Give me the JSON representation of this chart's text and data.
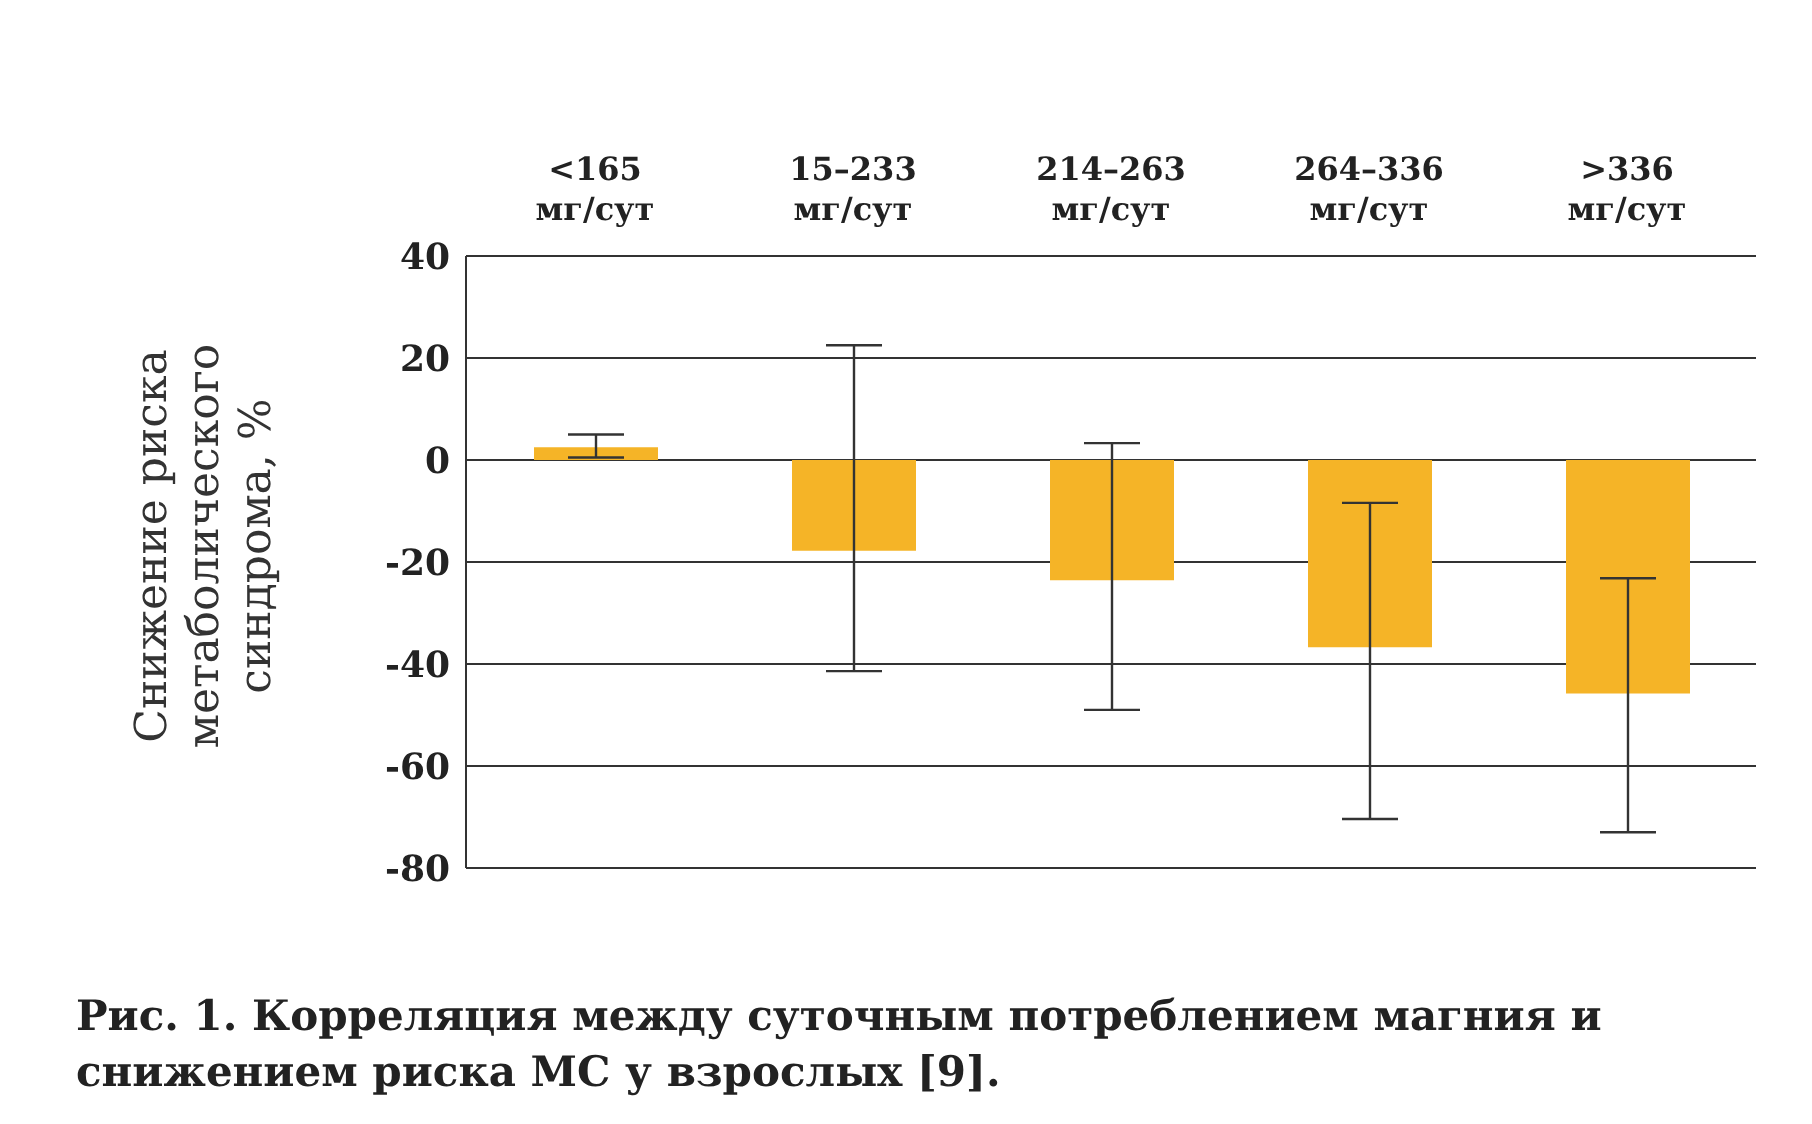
{
  "chart_data": {
    "type": "bar",
    "ylabel": "Снижение риска метаболического синдрома, %",
    "categories": [
      "<165 мг/сут",
      "15–233 мг/сут",
      "214–263 мг/сут",
      "264–336 мг/сут",
      ">336 мг/сут"
    ],
    "values": [
      2.5,
      -17.8,
      -23.6,
      -36.7,
      -45.8
    ],
    "errors": [
      [
        0.5,
        5
      ],
      [
        -41.4,
        22.5
      ],
      [
        -49,
        3.3
      ],
      [
        -70.4,
        -8.4
      ],
      [
        -73,
        -23.2
      ]
    ],
    "color": "#f5b427",
    "ylim": [
      -80,
      40
    ],
    "yticks": [
      -80,
      -60,
      -40,
      -20,
      0,
      20,
      40
    ],
    "grid": "y",
    "annotations": [
      "Рис. 1. Корреляция между суточным потреблением магния и снижением риска МС у взрослых [9]."
    ]
  }
}
